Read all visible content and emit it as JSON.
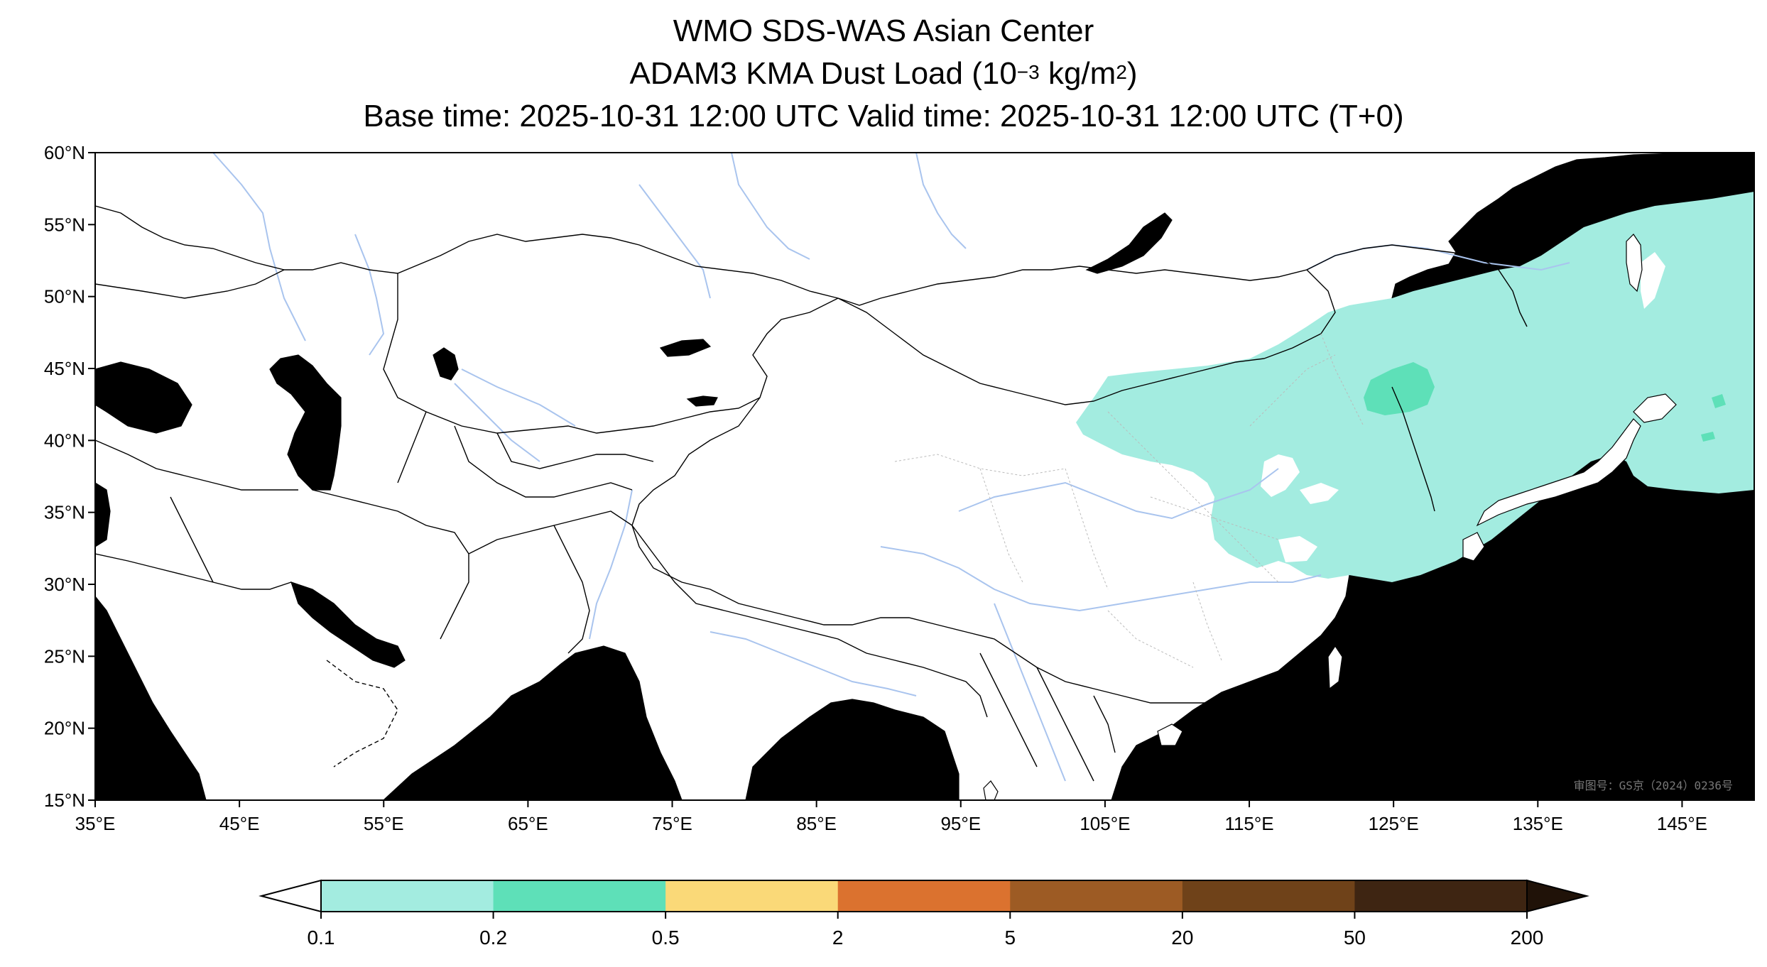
{
  "title": {
    "line1": "WMO SDS-WAS Asian Center",
    "line2_prefix": "ADAM3 KMA Dust Load (10",
    "line2_exp": "−3",
    "line2_mid": " kg/m",
    "line2_exp2": "2",
    "line2_suffix": ")",
    "line3": "Base time: 2025-10-31 12:00 UTC Valid time: 2025-10-31 12:00 UTC (T+0)"
  },
  "map": {
    "lon_range": [
      35,
      150
    ],
    "lat_range": [
      15,
      60
    ],
    "lon_ticks": [
      "35°E",
      "45°E",
      "55°E",
      "65°E",
      "75°E",
      "85°E",
      "95°E",
      "105°E",
      "115°E",
      "125°E",
      "135°E",
      "145°E"
    ],
    "lat_ticks": [
      "60°N",
      "55°N",
      "50°N",
      "45°N",
      "40°N",
      "35°N",
      "30°N",
      "25°N",
      "20°N",
      "15°N"
    ],
    "ocean_color": "#a9c4ee",
    "land_color": "#ffffff",
    "border_color": "#000000",
    "river_color": "#a9c4ee",
    "watermark": "审图号：GS京（2024）0236号"
  },
  "colorbar": {
    "ticks": [
      "0.1",
      "0.2",
      "0.5",
      "2",
      "5",
      "20",
      "50",
      "200"
    ],
    "colors": [
      "#a3ece0",
      "#5ee0b8",
      "#fad978",
      "#db722f",
      "#9d5b24",
      "#6f4219",
      "#3e2512"
    ],
    "under_color": "#ffffff",
    "over_color": "#201208"
  },
  "dust": {
    "light_color": "#a3ece0",
    "dense_color": "#5ee0b8"
  }
}
